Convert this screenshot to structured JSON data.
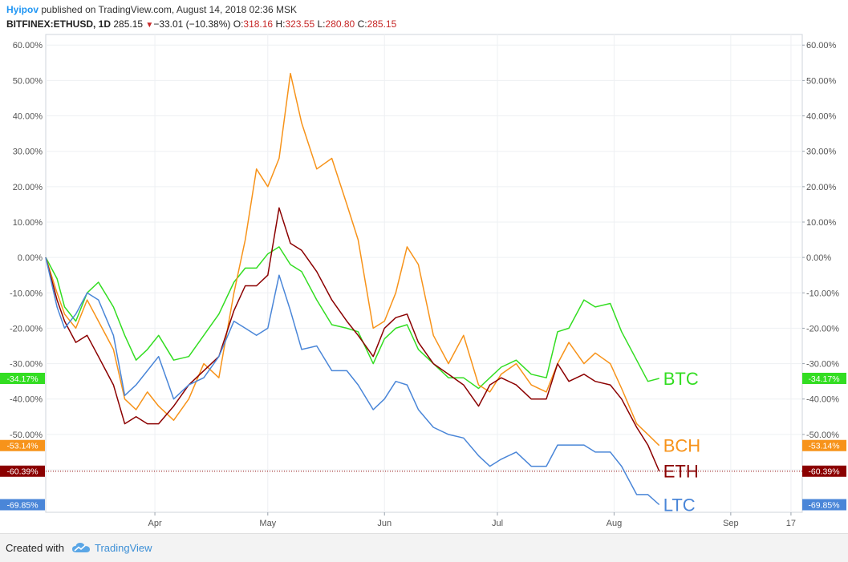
{
  "header": {
    "author": "Hyipov",
    "published_text": "published on TradingView.com, August 14, 2018 02:36 MSK",
    "symbol": "BITFINEX:ETHUSD, 1D",
    "last": "285.15",
    "change": "−33.01 (−10.38%)",
    "open_label": "O:",
    "open": "318.16",
    "high_label": "H:",
    "high": "323.55",
    "low_label": "L:",
    "low": "280.80",
    "close_label": "C:",
    "close": "285.15"
  },
  "footer": {
    "created_with": "Created with",
    "brand": "TradingView"
  },
  "chart_data": {
    "type": "line",
    "x_tick_labels": [
      "Apr",
      "May",
      "Jun",
      "Jul",
      "Aug",
      "Sep",
      "17"
    ],
    "y_tick_labels": [
      "60.00%",
      "50.00%",
      "40.00%",
      "30.00%",
      "20.00%",
      "10.00%",
      "0.00%",
      "-10.00%",
      "-20.00%",
      "-30.00%",
      "-40.00%",
      "-50.00%",
      "-60.00%"
    ],
    "ylim": [
      -72,
      63
    ],
    "y_unit": "percent",
    "x_start_date": "2018-03-03",
    "x_end_date": "2018-09-20",
    "grid": true,
    "series": [
      {
        "name": "BTC",
        "color": "#33dd22",
        "last_label": "-34.17%",
        "x": [
          "2018-03-03",
          "2018-03-06",
          "2018-03-08",
          "2018-03-11",
          "2018-03-14",
          "2018-03-17",
          "2018-03-21",
          "2018-03-24",
          "2018-03-27",
          "2018-03-30",
          "2018-04-02",
          "2018-04-06",
          "2018-04-10",
          "2018-04-14",
          "2018-04-18",
          "2018-04-22",
          "2018-04-25",
          "2018-04-28",
          "2018-05-01",
          "2018-05-04",
          "2018-05-07",
          "2018-05-10",
          "2018-05-14",
          "2018-05-18",
          "2018-05-22",
          "2018-05-25",
          "2018-05-29",
          "2018-06-01",
          "2018-06-04",
          "2018-06-07",
          "2018-06-10",
          "2018-06-14",
          "2018-06-18",
          "2018-06-22",
          "2018-06-26",
          "2018-06-29",
          "2018-07-02",
          "2018-07-06",
          "2018-07-10",
          "2018-07-14",
          "2018-07-17",
          "2018-07-20",
          "2018-07-24",
          "2018-07-27",
          "2018-07-31",
          "2018-08-03",
          "2018-08-07",
          "2018-08-10",
          "2018-08-13"
        ],
        "y": [
          0,
          -6,
          -14,
          -18,
          -10,
          -7,
          -14,
          -22,
          -29,
          -26,
          -22,
          -29,
          -28,
          -22,
          -16,
          -7,
          -3,
          -3,
          1,
          3,
          -2,
          -4,
          -12,
          -19,
          -20,
          -21,
          -30,
          -23,
          -20,
          -19,
          -26,
          -30,
          -34,
          -34,
          -37,
          -34,
          -31,
          -29,
          -33,
          -34,
          -21,
          -20,
          -12,
          -14,
          -13,
          -21,
          -29,
          -35,
          -34.17
        ]
      },
      {
        "name": "BCH",
        "color": "#f7931a",
        "last_label": "-53.14%",
        "x": [
          "2018-03-03",
          "2018-03-06",
          "2018-03-08",
          "2018-03-11",
          "2018-03-14",
          "2018-03-17",
          "2018-03-21",
          "2018-03-24",
          "2018-03-27",
          "2018-03-30",
          "2018-04-02",
          "2018-04-06",
          "2018-04-10",
          "2018-04-14",
          "2018-04-18",
          "2018-04-22",
          "2018-04-25",
          "2018-04-28",
          "2018-05-01",
          "2018-05-04",
          "2018-05-07",
          "2018-05-10",
          "2018-05-14",
          "2018-05-18",
          "2018-05-22",
          "2018-05-25",
          "2018-05-29",
          "2018-06-01",
          "2018-06-04",
          "2018-06-07",
          "2018-06-10",
          "2018-06-14",
          "2018-06-18",
          "2018-06-22",
          "2018-06-26",
          "2018-06-29",
          "2018-07-02",
          "2018-07-06",
          "2018-07-10",
          "2018-07-14",
          "2018-07-17",
          "2018-07-20",
          "2018-07-24",
          "2018-07-27",
          "2018-07-31",
          "2018-08-03",
          "2018-08-07",
          "2018-08-10",
          "2018-08-13"
        ],
        "y": [
          0,
          -10,
          -16,
          -20,
          -12,
          -18,
          -26,
          -40,
          -43,
          -38,
          -42,
          -46,
          -40,
          -30,
          -34,
          -10,
          5,
          25,
          20,
          28,
          52,
          38,
          25,
          28,
          15,
          5,
          -20,
          -18,
          -10,
          3,
          -2,
          -22,
          -30,
          -22,
          -36,
          -38,
          -33,
          -30,
          -36,
          -38,
          -30,
          -24,
          -30,
          -27,
          -30,
          -37,
          -47,
          -50,
          -53.14
        ]
      },
      {
        "name": "ETH",
        "color": "#8b0000",
        "last_label": "-60.39%",
        "x": [
          "2018-03-03",
          "2018-03-06",
          "2018-03-08",
          "2018-03-11",
          "2018-03-14",
          "2018-03-17",
          "2018-03-21",
          "2018-03-24",
          "2018-03-27",
          "2018-03-30",
          "2018-04-02",
          "2018-04-06",
          "2018-04-10",
          "2018-04-14",
          "2018-04-18",
          "2018-04-22",
          "2018-04-25",
          "2018-04-28",
          "2018-05-01",
          "2018-05-04",
          "2018-05-07",
          "2018-05-10",
          "2018-05-14",
          "2018-05-18",
          "2018-05-22",
          "2018-05-25",
          "2018-05-29",
          "2018-06-01",
          "2018-06-04",
          "2018-06-07",
          "2018-06-10",
          "2018-06-14",
          "2018-06-18",
          "2018-06-22",
          "2018-06-26",
          "2018-06-29",
          "2018-07-02",
          "2018-07-06",
          "2018-07-10",
          "2018-07-14",
          "2018-07-17",
          "2018-07-20",
          "2018-07-24",
          "2018-07-27",
          "2018-07-31",
          "2018-08-03",
          "2018-08-07",
          "2018-08-10",
          "2018-08-13"
        ],
        "y": [
          0,
          -12,
          -18,
          -24,
          -22,
          -28,
          -36,
          -47,
          -45,
          -47,
          -47,
          -42,
          -36,
          -32,
          -28,
          -15,
          -8,
          -8,
          -5,
          14,
          4,
          2,
          -4,
          -12,
          -18,
          -22,
          -28,
          -20,
          -17,
          -16,
          -24,
          -30,
          -33,
          -36,
          -42,
          -36,
          -34,
          -36,
          -40,
          -40,
          -30,
          -35,
          -33,
          -35,
          -36,
          -40,
          -48,
          -53,
          -60.39
        ]
      },
      {
        "name": "LTC",
        "color": "#4a86d8",
        "last_label": "-69.85%",
        "x": [
          "2018-03-03",
          "2018-03-06",
          "2018-03-08",
          "2018-03-11",
          "2018-03-14",
          "2018-03-17",
          "2018-03-21",
          "2018-03-24",
          "2018-03-27",
          "2018-03-30",
          "2018-04-02",
          "2018-04-06",
          "2018-04-10",
          "2018-04-14",
          "2018-04-18",
          "2018-04-22",
          "2018-04-25",
          "2018-04-28",
          "2018-05-01",
          "2018-05-04",
          "2018-05-07",
          "2018-05-10",
          "2018-05-14",
          "2018-05-18",
          "2018-05-22",
          "2018-05-25",
          "2018-05-29",
          "2018-06-01",
          "2018-06-04",
          "2018-06-07",
          "2018-06-10",
          "2018-06-14",
          "2018-06-18",
          "2018-06-22",
          "2018-06-26",
          "2018-06-29",
          "2018-07-02",
          "2018-07-06",
          "2018-07-10",
          "2018-07-14",
          "2018-07-17",
          "2018-07-20",
          "2018-07-24",
          "2018-07-27",
          "2018-07-31",
          "2018-08-03",
          "2018-08-07",
          "2018-08-10",
          "2018-08-13"
        ],
        "y": [
          0,
          -14,
          -20,
          -16,
          -10,
          -12,
          -22,
          -39,
          -36,
          -32,
          -28,
          -40,
          -36,
          -34,
          -28,
          -18,
          -20,
          -22,
          -20,
          -5,
          -15,
          -26,
          -25,
          -32,
          -32,
          -36,
          -43,
          -40,
          -35,
          -36,
          -43,
          -48,
          -50,
          -51,
          -56,
          -59,
          -57,
          -55,
          -59,
          -59,
          -53,
          -53,
          -53,
          -55,
          -55,
          -59,
          -67,
          -67,
          -69.85
        ]
      }
    ],
    "last_price_line": {
      "series": "ETH",
      "value": -60.39
    }
  }
}
